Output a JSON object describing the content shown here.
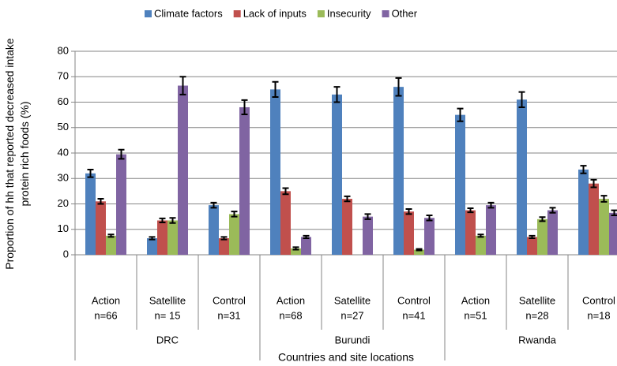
{
  "chart_data": {
    "type": "bar",
    "y_axis_label": "Proportion of hh that reported decreased intake protein rich foods (%)",
    "x_axis_label": "Countries and site locations",
    "groups": [
      {
        "name": "DRC",
        "categories": [
          {
            "label": "Action",
            "n": "n=66"
          },
          {
            "label": "Satellite",
            "n": "n= 15"
          },
          {
            "label": "Control",
            "n": "n=31"
          }
        ]
      },
      {
        "name": "Burundi",
        "categories": [
          {
            "label": "Action",
            "n": "n=68"
          },
          {
            "label": "Satellite",
            "n": "n=27"
          },
          {
            "label": "Control",
            "n": "n=41"
          }
        ]
      },
      {
        "name": "Rwanda",
        "categories": [
          {
            "label": "Action",
            "n": "n=51"
          },
          {
            "label": "Satellite",
            "n": "n=28"
          },
          {
            "label": "Control",
            "n": "n=18"
          }
        ]
      }
    ],
    "series": [
      {
        "name": "Climate factors",
        "color": "#4f81bd",
        "values": [
          32,
          6.5,
          19.5,
          65,
          63,
          66,
          55,
          61,
          33.5
        ],
        "errors": [
          1.5,
          0.5,
          1,
          3,
          3,
          3.5,
          2.5,
          3,
          1.5
        ]
      },
      {
        "name": "Lack of inputs",
        "color": "#c0504d",
        "values": [
          21,
          13.5,
          6.5,
          25,
          22,
          17,
          17.5,
          7,
          28
        ],
        "errors": [
          1,
          0.8,
          0.5,
          1.2,
          1,
          1,
          0.8,
          0.5,
          1.5
        ]
      },
      {
        "name": "Insecurity",
        "color": "#9bbb59",
        "values": [
          7.5,
          13.5,
          16,
          2.5,
          null,
          2,
          7.5,
          14,
          22
        ],
        "errors": [
          0.5,
          1,
          1,
          0.5,
          null,
          0.3,
          0.5,
          0.8,
          1.2
        ]
      },
      {
        "name": "Other",
        "color": "#8064a2",
        "values": [
          39.5,
          66.5,
          58,
          7,
          15,
          14.5,
          19.5,
          17.5,
          16.5
        ],
        "errors": [
          1.8,
          3.5,
          2.8,
          0.5,
          1,
          1,
          1,
          1,
          1
        ]
      }
    ],
    "ylim": [
      0,
      80
    ],
    "yticks": [
      0,
      10,
      20,
      30,
      40,
      50,
      60,
      70,
      80
    ],
    "grid": true,
    "legend": "top"
  }
}
